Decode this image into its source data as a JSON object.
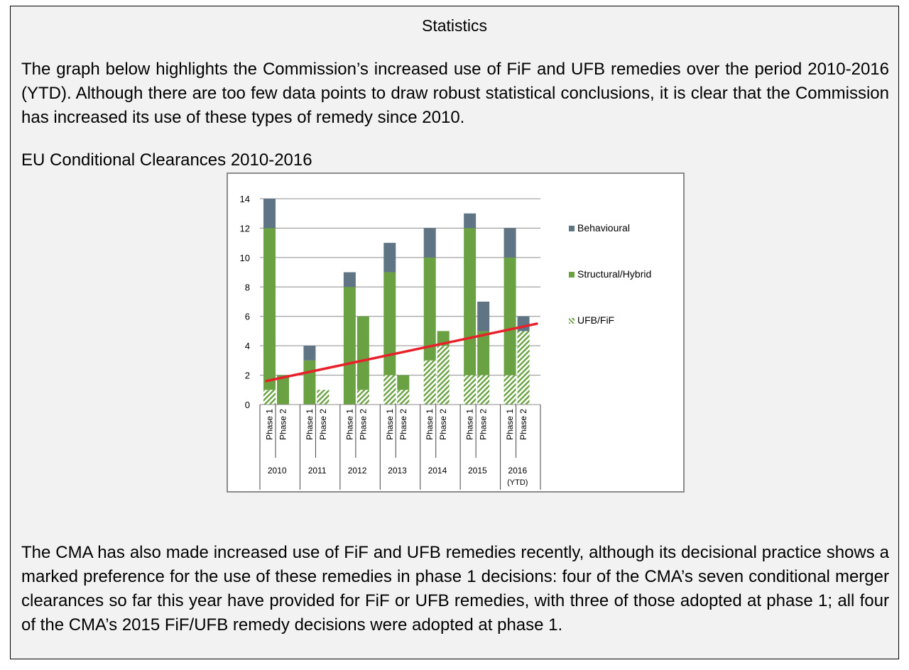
{
  "box": {
    "title": "Statistics",
    "intro": "The graph below highlights the Commission’s increased use of FiF and UFB remedies over the period 2010-2016 (YTD).  Although there are too few data points to draw robust statistical conclusions, it is clear that the Commission has increased its use of these types of remedy since 2010.",
    "chart_heading": "EU Conditional Clearances 2010-2016",
    "closing": "The CMA has also made increased use of FiF and UFB remedies recently, although its decisional practice shows a marked preference for the use of these remedies in phase 1 decisions: four of the CMA’s seven conditional merger clearances so far this year have provided for FiF or UFB remedies, with three of those adopted at phase 1; all four of the CMA’s 2015 FiF/UFB remedy decisions were adopted at phase 1."
  },
  "colors": {
    "behavioural": "#5f7484",
    "structural": "#6aa142",
    "ufb": "#6aa142",
    "trend": "#e8202a",
    "grid": "#8c8c8c"
  },
  "chart_data": {
    "type": "bar",
    "stacked": true,
    "ylim": [
      0,
      14
    ],
    "yticks": [
      0,
      2,
      4,
      6,
      8,
      10,
      12,
      14
    ],
    "groups": [
      "2010",
      "2011",
      "2012",
      "2013",
      "2014",
      "2015",
      "2016 (YTD)"
    ],
    "group_labels": [
      [
        "2010"
      ],
      [
        "2011"
      ],
      [
        "2012"
      ],
      [
        "2013"
      ],
      [
        "2014"
      ],
      [
        "2015"
      ],
      [
        "2016",
        "(YTD)"
      ]
    ],
    "subcategories": [
      "Phase 1",
      "Phase 2"
    ],
    "series": [
      {
        "name": "UFB/FiF",
        "values": [
          [
            1,
            0
          ],
          [
            0,
            1
          ],
          [
            0,
            1
          ],
          [
            2,
            1
          ],
          [
            3,
            4
          ],
          [
            2,
            2
          ],
          [
            2,
            5
          ]
        ]
      },
      {
        "name": "Structural/Hybrid",
        "values": [
          [
            11,
            2
          ],
          [
            3,
            0
          ],
          [
            8,
            5
          ],
          [
            7,
            1
          ],
          [
            7,
            1
          ],
          [
            10,
            3
          ],
          [
            8,
            0
          ]
        ]
      },
      {
        "name": "Behavioural",
        "values": [
          [
            2,
            0
          ],
          [
            1,
            0
          ],
          [
            1,
            0
          ],
          [
            2,
            0
          ],
          [
            2,
            0
          ],
          [
            1,
            2
          ],
          [
            2,
            1
          ]
        ]
      }
    ],
    "legend": [
      "Behavioural",
      "Structural/Hybrid",
      "UFB/FiF"
    ],
    "legend_position": "right",
    "trendline": {
      "start": 1.6,
      "end": 5.5
    },
    "grid": true
  }
}
